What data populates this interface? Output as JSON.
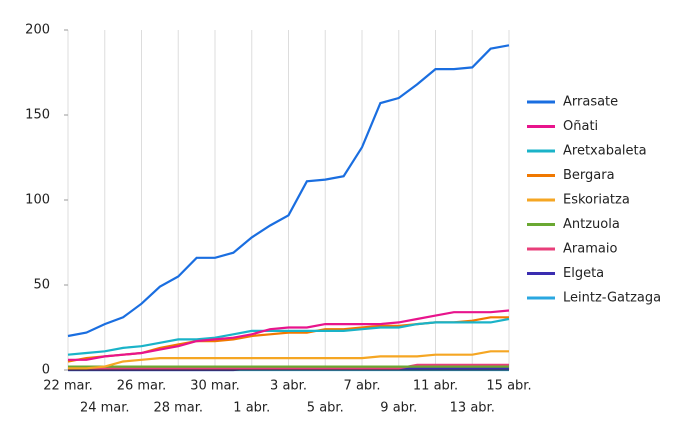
{
  "chart_data": {
    "type": "line",
    "categories": [
      "22 mar.",
      null,
      "24 mar.",
      null,
      "26 mar.",
      null,
      "28 mar.",
      null,
      "30 mar.",
      null,
      "1 abr.",
      null,
      "3 abr.",
      null,
      "5 abr.",
      null,
      "7 abr.",
      null,
      "9 abr.",
      null,
      "11 abr.",
      null,
      "13 abr.",
      null,
      "15 abr."
    ],
    "ylim": [
      0,
      200
    ],
    "yticks": [
      0,
      50,
      100,
      150,
      200
    ],
    "grid": true,
    "legend": "right",
    "series": [
      {
        "name": "Arrasate",
        "color": "#1a6ee0",
        "values": [
          20,
          22,
          27,
          31,
          39,
          49,
          55,
          66,
          66,
          69,
          78,
          85,
          91,
          111,
          112,
          114,
          131,
          157,
          160,
          168,
          177,
          177,
          178,
          189,
          191
        ]
      },
      {
        "name": "Oñati",
        "color": "#e8148c",
        "values": [
          6,
          6,
          8,
          9,
          10,
          12,
          14,
          17,
          18,
          19,
          21,
          24,
          25,
          25,
          27,
          27,
          27,
          27,
          28,
          30,
          32,
          34,
          34,
          34,
          35
        ]
      },
      {
        "name": "Aretxabaleta",
        "color": "#1ab3c8",
        "values": [
          9,
          10,
          11,
          13,
          14,
          16,
          18,
          18,
          19,
          21,
          23,
          23,
          23,
          23,
          23,
          23,
          24,
          25,
          25,
          27,
          28,
          28,
          28,
          28,
          30
        ]
      },
      {
        "name": "Bergara",
        "color": "#f07800",
        "values": [
          5,
          7,
          8,
          9,
          10,
          13,
          15,
          17,
          17,
          18,
          20,
          21,
          22,
          22,
          24,
          24,
          25,
          26,
          26,
          27,
          28,
          28,
          29,
          31,
          31
        ]
      },
      {
        "name": "Eskoriatza",
        "color": "#f5a623",
        "values": [
          1,
          1,
          2,
          5,
          6,
          7,
          7,
          7,
          7,
          7,
          7,
          7,
          7,
          7,
          7,
          7,
          7,
          8,
          8,
          8,
          9,
          9,
          9,
          11,
          11
        ]
      },
      {
        "name": "Antzuola",
        "color": "#6aa832",
        "values": [
          2,
          2,
          2,
          2,
          2,
          2,
          2,
          2,
          2,
          2,
          2,
          2,
          2,
          2,
          2,
          2,
          2,
          2,
          2,
          2,
          2,
          2,
          2,
          2,
          2
        ]
      },
      {
        "name": "Aramaio",
        "color": "#e83e7a",
        "values": [
          1,
          1,
          1,
          1,
          1,
          1,
          1,
          1,
          1,
          1,
          1,
          1,
          1,
          1,
          1,
          1,
          1,
          1,
          1,
          3,
          3,
          3,
          3,
          3,
          3
        ]
      },
      {
        "name": "Elgeta",
        "color": "#3a2db0",
        "values": [
          0,
          0,
          0,
          0,
          0,
          0,
          0,
          0,
          0,
          0,
          1,
          1,
          1,
          1,
          1,
          1,
          1,
          1,
          1,
          1,
          1,
          1,
          1,
          1,
          1
        ]
      },
      {
        "name": "Leintz-Gatzaga",
        "color": "#2aa7e0",
        "values": [
          0,
          0,
          0,
          0,
          0,
          0,
          0,
          0,
          0,
          0,
          0,
          0,
          0,
          0,
          0,
          0,
          0,
          0,
          0,
          0,
          0,
          0,
          0,
          0,
          0
        ]
      }
    ]
  }
}
